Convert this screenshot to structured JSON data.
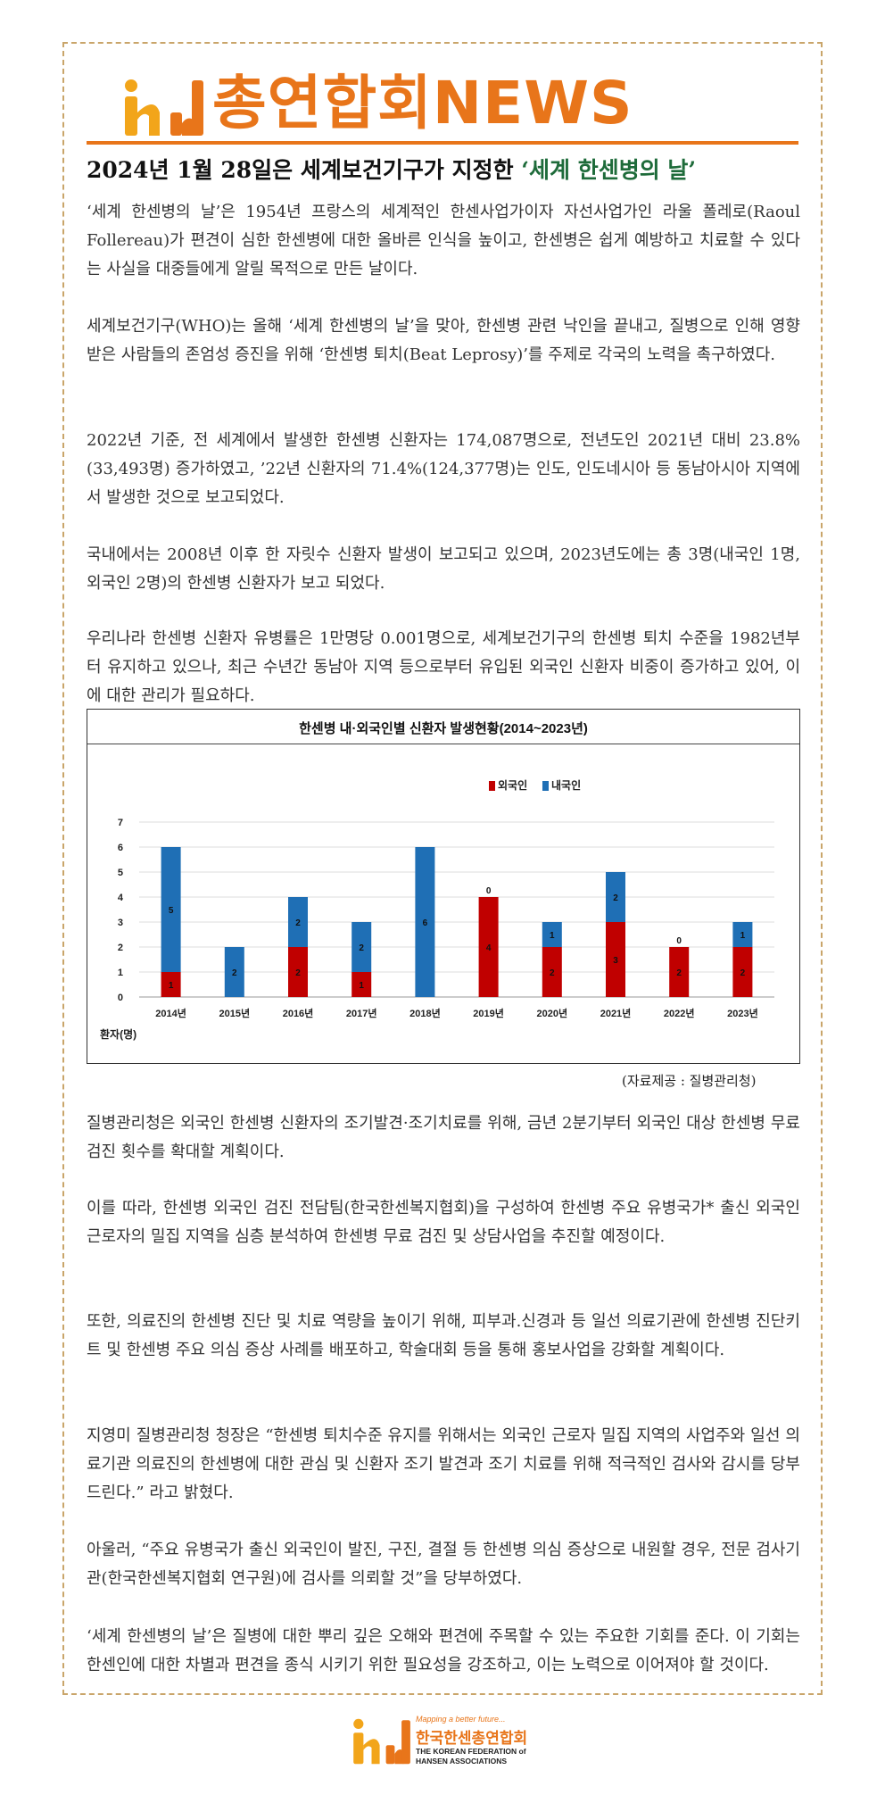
{
  "masthead": {
    "title": "총연합회NEWS",
    "logo_icon": "hd-logo-icon",
    "accent_color": "#e8751a"
  },
  "headline": {
    "prefix": "2024년 1월 28일은 세계보건기구가 지정한 ",
    "highlight": "‘세계 한센병의 날’"
  },
  "paragraphs": {
    "p1": "‘세계 한센병의 날’은 1954년 프랑스의 세계적인 한센사업가이자 자선사업가인 라울 폴레로(Raoul Follereau)가 편견이 심한 한센병에 대한 올바른 인식을 높이고, 한센병은 쉽게 예방하고 치료할 수 있다는 사실을 대중들에게 알릴 목적으로 만든 날이다.",
    "p2": "세계보건기구(WHO)는 올해 ‘세계 한센병의 날’을 맞아, 한센병 관련 낙인을 끝내고, 질병으로 인해 영향받은 사람들의 존엄성 증진을 위해 ‘한센병 퇴치(Beat Leprosy)’를 주제로 각국의 노력을 촉구하였다.",
    "p3": "2022년 기준, 전 세계에서 발생한 한센병 신환자는 174,087명으로, 전년도인 2021년 대비 23.8%(33,493명) 증가하였고, ’22년 신환자의 71.4%(124,377명)는 인도, 인도네시아 등 동남아시아 지역에서 발생한 것으로 보고되었다.",
    "p4": "국내에서는 2008년 이후 한 자릿수 신환자 발생이 보고되고 있으며, 2023년도에는 총 3명(내국인 1명, 외국인 2명)의 한센병 신환자가 보고 되었다.",
    "p5": "우리나라 한센병 신환자 유병률은 1만명당 0.001명으로, 세계보건기구의 한센병 퇴치 수준을 1982년부터 유지하고 있으나, 최근 수년간 동남아 지역 등으로부터 유입된 외국인 신환자 비중이 증가하고 있어, 이에 대한 관리가 필요하다.",
    "p6": "질병관리청은 외국인 한센병 신환자의 조기발견·조기치료를 위해, 금년 2분기부터 외국인 대상 한센병 무료 검진 횟수를 확대할 계획이다.",
    "p7": "이를 따라, 한센병 외국인 검진 전담팀(한국한센복지협회)을 구성하여 한센병 주요 유병국가* 출신 외국인 근로자의 밀집 지역을 심층 분석하여 한센병 무료 검진 및 상담사업을 추진할 예정이다.",
    "p8": "또한, 의료진의 한센병 진단 및 치료 역량을 높이기 위해, 피부과.신경과 등 일선 의료기관에 한센병 진단키트 및 한센병 주요 의심 증상 사례를 배포하고, 학술대회 등을 통해 홍보사업을 강화할 계획이다.",
    "p9": "지영미 질병관리청 청장은 “한센병 퇴치수준 유지를 위해서는 외국인 근로자 밀집 지역의 사업주와 일선 의료기관 의료진의 한센병에 대한 관심 및 신환자 조기 발견과 조기 치료를 위해 적극적인 검사와 감시를 당부드린다.” 라고 밝혔다.",
    "p10": "아울러, “주요 유병국가 출신 외국인이 발진, 구진, 결절 등 한센병 의심 증상으로 내원할 경우, 전문 검사기관(한국한센복지협회 연구원)에 검사를 의뢰할 것”을 당부하였다.",
    "p11": "‘세계 한센병의 날’은 질병에 대한 뿌리 깊은 오해와 편견에 주목할 수 있는 주요한 기회를 준다. 이 기회는 한센인에 대한 차별과 편견을 종식 시키기 위한 필요성을 강조하고, 이는 노력으로 이어져야 할 것이다."
  },
  "source_note": "(자료제공 : 질병관리청)",
  "footer": {
    "tagline": "Mapping a better future...",
    "org_korean": "한국한센총연합회",
    "org_english_1": "THE KOREAN FEDERATION of",
    "org_english_2": "HANSEN ASSOCIATIONS"
  },
  "chart_data": {
    "type": "bar",
    "stacked": true,
    "title": "한센병 내·외국인별 신환자 발생현황(2014~2023년)",
    "ylabel": "환자(명)",
    "xlabel": "",
    "categories": [
      "2014년",
      "2015년",
      "2016년",
      "2017년",
      "2018년",
      "2019년",
      "2020년",
      "2021년",
      "2022년",
      "2023년"
    ],
    "series": [
      {
        "name": "외국인",
        "color": "#c00000",
        "values": [
          1,
          0,
          2,
          1,
          0,
          4,
          2,
          3,
          2,
          2
        ]
      },
      {
        "name": "내국인",
        "color": "#1f6fb5",
        "values": [
          5,
          2,
          2,
          2,
          6,
          0,
          1,
          2,
          0,
          1
        ]
      }
    ],
    "ylim": [
      0,
      7
    ],
    "yticks": [
      0,
      1,
      2,
      3,
      4,
      5,
      6,
      7
    ],
    "grid": true,
    "legend": "top-right"
  }
}
